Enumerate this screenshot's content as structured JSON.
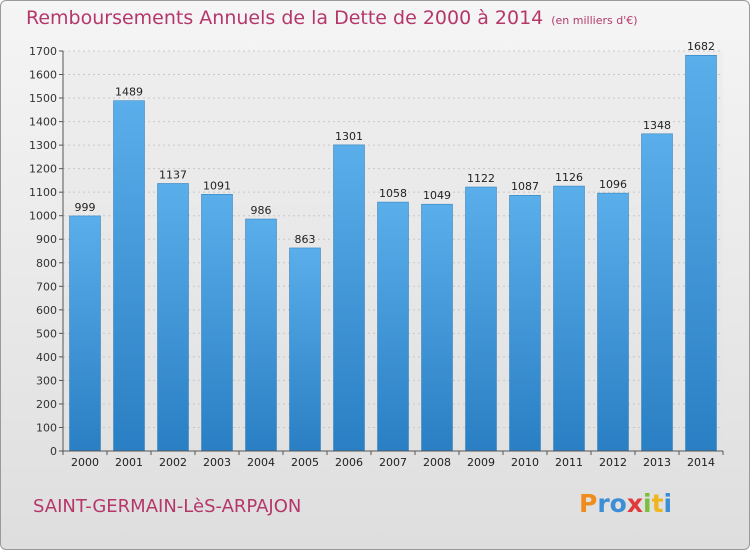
{
  "chart_data": {
    "type": "bar",
    "title": "Remboursements Annuels de la Dette de 2000 à 2014",
    "unit_note": "(en milliers d'€)",
    "categories": [
      "2000",
      "2001",
      "2002",
      "2003",
      "2004",
      "2005",
      "2006",
      "2007",
      "2008",
      "2009",
      "2010",
      "2011",
      "2012",
      "2013",
      "2014"
    ],
    "values": [
      999,
      1489,
      1137,
      1091,
      986,
      863,
      1301,
      1058,
      1049,
      1122,
      1087,
      1126,
      1096,
      1348,
      1682
    ],
    "ylim": [
      0,
      1700
    ],
    "yticks": [
      0,
      100,
      200,
      300,
      400,
      500,
      600,
      700,
      800,
      900,
      1000,
      1100,
      1200,
      1300,
      1400,
      1500,
      1600,
      1700
    ],
    "grid": true,
    "bar_color": "#4a9fe0"
  },
  "footer": {
    "city": "SAINT-GERMAIN-LèS-ARPAJON",
    "logo_letters": [
      "P",
      "r",
      "o",
      "x",
      "i",
      "t",
      "i"
    ],
    "logo_colors": [
      "#f08c1e",
      "#3c8fd6",
      "#3c8fd6",
      "#e03a3a",
      "#7cbf3a",
      "#f0b61e",
      "#3c8fd6"
    ]
  }
}
